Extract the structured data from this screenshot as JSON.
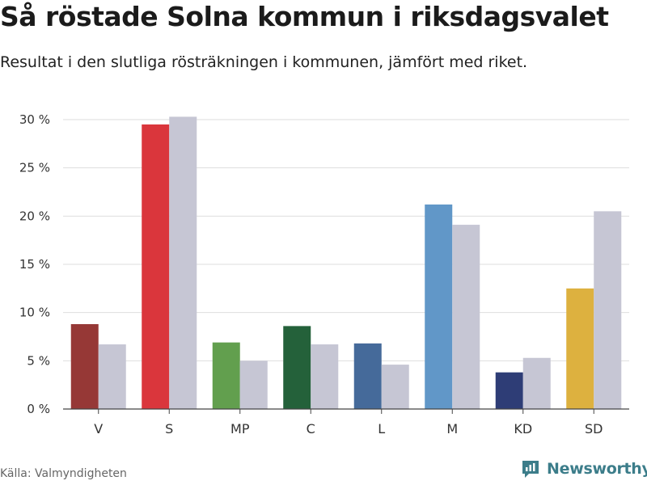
{
  "title": "Så röstade Solna kommun i riksdagsvalet",
  "subtitle": "Resultat i den slutliga rösträkningen i kommunen, jämfört med riket.",
  "source": "Källa: Valmyndigheten",
  "brand": {
    "name": "Newsworthy",
    "icon": "newsworthy-logo-icon",
    "color": "#3c7d8a"
  },
  "chart_data": {
    "type": "bar",
    "categories": [
      "V",
      "S",
      "MP",
      "C",
      "L",
      "M",
      "KD",
      "SD"
    ],
    "series": [
      {
        "values": [
          8.8,
          29.5,
          6.9,
          8.6,
          6.8,
          21.2,
          3.8,
          12.5
        ],
        "colors": [
          "#963836",
          "#da363c",
          "#629f4e",
          "#24613a",
          "#456a9a",
          "#6197c8",
          "#2e3d76",
          "#ddb13f"
        ]
      },
      {
        "values": [
          6.7,
          30.3,
          5.0,
          6.7,
          4.6,
          19.1,
          5.3,
          20.5
        ],
        "color": "#c6c6d4"
      }
    ],
    "yticks": [
      "0 %",
      "5 %",
      "10 %",
      "15 %",
      "20 %",
      "25 %",
      "30 %"
    ],
    "ylim": [
      0,
      30
    ],
    "grid": true,
    "xlabel": "",
    "ylabel": ""
  }
}
